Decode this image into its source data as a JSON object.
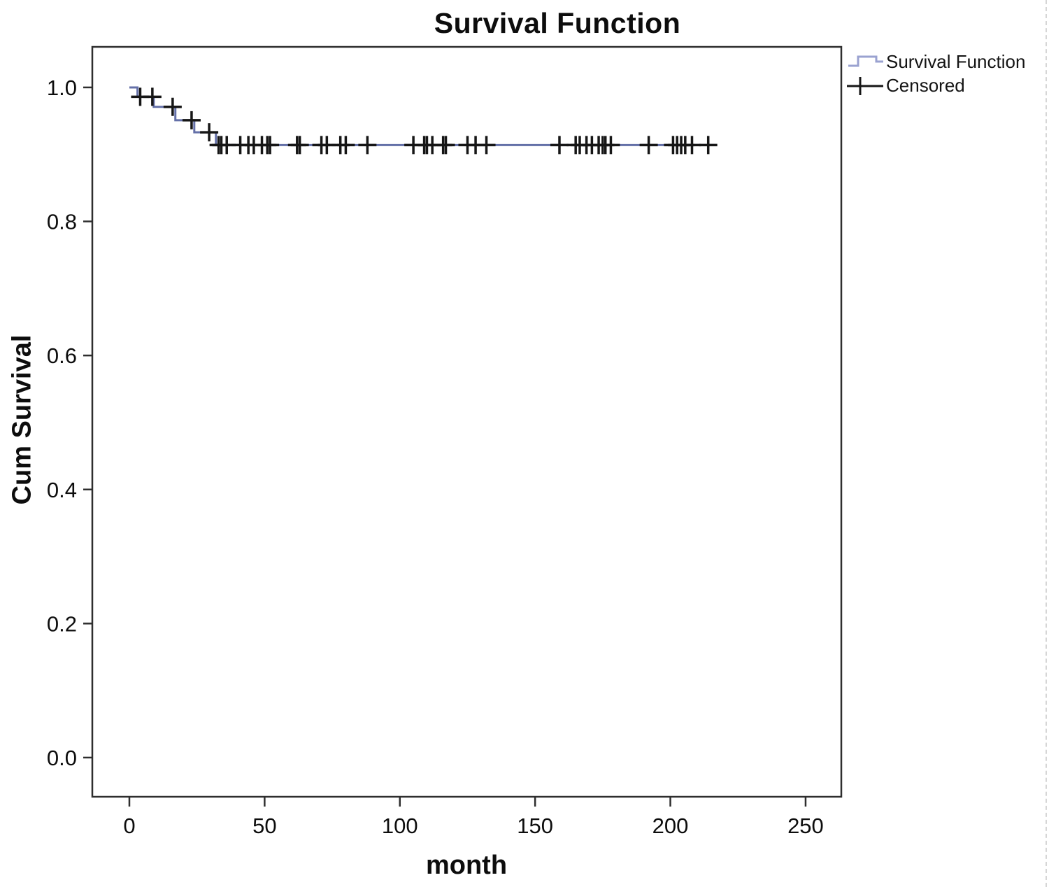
{
  "title": "Survival Function",
  "colors": {
    "curve": "#6470a8",
    "legend_line": "#9aa2d0",
    "censor": "#161616",
    "frame": "#2e2e2e",
    "text": "#0d0d0d"
  },
  "legend": {
    "items": [
      {
        "label": "Survival Function",
        "symbol": "step-line"
      },
      {
        "label": "Censored",
        "symbol": "plus-marker"
      }
    ]
  },
  "chart_data": {
    "type": "line",
    "subtype": "kaplan-meier-step",
    "title": "Survival Function",
    "xlabel": "month",
    "ylabel": "Cum Survival",
    "xlim": [
      -13.7,
      263.2
    ],
    "ylim": [
      -0.0585,
      1.0605
    ],
    "grid": false,
    "legend_position": "top-right-outside",
    "x_ticks": [
      {
        "value": 0,
        "label": "0"
      },
      {
        "value": 50,
        "label": "50"
      },
      {
        "value": 100,
        "label": "100"
      },
      {
        "value": 150,
        "label": "150"
      },
      {
        "value": 200,
        "label": "200"
      },
      {
        "value": 250,
        "label": "250"
      }
    ],
    "y_ticks": [
      {
        "value": 1.0,
        "label": "1.0"
      },
      {
        "value": 0.8,
        "label": "0.8"
      },
      {
        "value": 0.6,
        "label": "0.6"
      },
      {
        "value": 0.4,
        "label": "0.4"
      },
      {
        "value": 0.2,
        "label": "0.2"
      },
      {
        "value": 0.0,
        "label": "0.0"
      }
    ],
    "series": [
      {
        "name": "Survival Function",
        "style": "step",
        "points": [
          [
            0,
            1.0
          ],
          [
            3,
            1.0
          ],
          [
            3,
            0.986
          ],
          [
            9,
            0.986
          ],
          [
            9,
            0.971
          ],
          [
            17,
            0.971
          ],
          [
            17,
            0.951
          ],
          [
            24,
            0.951
          ],
          [
            24,
            0.933
          ],
          [
            32,
            0.933
          ],
          [
            32,
            0.914
          ],
          [
            217,
            0.914
          ]
        ]
      }
    ],
    "censored": {
      "name": "Censored",
      "marker": "plus",
      "points": [
        [
          4,
          0.986
        ],
        [
          8.5,
          0.986
        ],
        [
          16,
          0.971
        ],
        [
          23,
          0.951
        ],
        [
          29.5,
          0.933
        ],
        [
          33,
          0.914
        ],
        [
          34,
          0.914
        ],
        [
          36,
          0.914
        ],
        [
          41,
          0.914
        ],
        [
          44,
          0.914
        ],
        [
          46,
          0.914
        ],
        [
          49,
          0.914
        ],
        [
          51,
          0.914
        ],
        [
          52,
          0.914
        ],
        [
          62,
          0.914
        ],
        [
          63,
          0.914
        ],
        [
          71,
          0.914
        ],
        [
          73,
          0.914
        ],
        [
          78,
          0.914
        ],
        [
          80,
          0.914
        ],
        [
          88,
          0.914
        ],
        [
          105,
          0.914
        ],
        [
          109,
          0.914
        ],
        [
          110,
          0.914
        ],
        [
          112,
          0.914
        ],
        [
          116,
          0.914
        ],
        [
          117,
          0.914
        ],
        [
          125,
          0.914
        ],
        [
          128,
          0.914
        ],
        [
          132,
          0.914
        ],
        [
          159,
          0.914
        ],
        [
          165,
          0.914
        ],
        [
          166.5,
          0.914
        ],
        [
          169,
          0.914
        ],
        [
          171,
          0.914
        ],
        [
          173.5,
          0.914
        ],
        [
          175,
          0.914
        ],
        [
          176,
          0.914
        ],
        [
          178,
          0.914
        ],
        [
          192,
          0.914
        ],
        [
          201,
          0.914
        ],
        [
          202.5,
          0.914
        ],
        [
          204,
          0.914
        ],
        [
          205.5,
          0.914
        ],
        [
          208,
          0.914
        ],
        [
          214,
          0.914
        ]
      ]
    }
  }
}
